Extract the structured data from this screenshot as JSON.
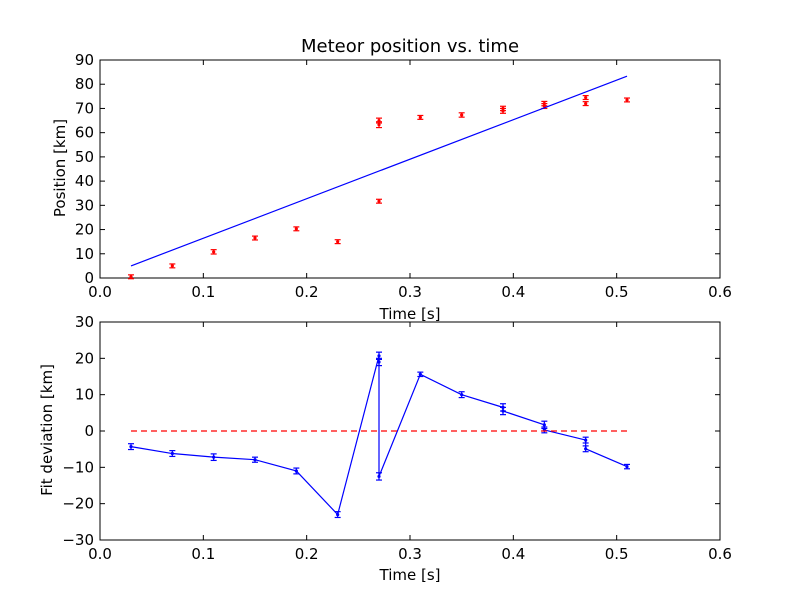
{
  "chart_data": [
    {
      "type": "scatter",
      "title": "Meteor position vs. time",
      "xlabel": "Time [s]",
      "ylabel": "Position [km]",
      "xlim": [
        0.0,
        0.6
      ],
      "ylim": [
        0,
        90
      ],
      "xticks": [
        "0.0",
        "0.1",
        "0.2",
        "0.3",
        "0.4",
        "0.5",
        "0.6"
      ],
      "yticks": [
        "0",
        "10",
        "20",
        "30",
        "40",
        "50",
        "60",
        "70",
        "80",
        "90"
      ],
      "grid": false,
      "series": [
        {
          "kind": "errorbar-points",
          "color": "#ff0000",
          "x": [
            0.03,
            0.07,
            0.11,
            0.15,
            0.19,
            0.23,
            0.27,
            0.27,
            0.27,
            0.31,
            0.35,
            0.39,
            0.39,
            0.43,
            0.43,
            0.47,
            0.47,
            0.51
          ],
          "y": [
            0.5,
            5.0,
            10.8,
            16.5,
            20.3,
            15.0,
            31.7,
            63.3,
            65.0,
            66.3,
            67.3,
            69.0,
            70.0,
            71.0,
            72.0,
            72.0,
            74.5,
            73.5
          ],
          "err": [
            0.8,
            0.8,
            0.9,
            0.8,
            0.8,
            0.8,
            0.8,
            1.2,
            1.0,
            0.8,
            0.9,
            1.0,
            0.9,
            1.0,
            0.9,
            0.8,
            0.8,
            0.8
          ]
        },
        {
          "kind": "line",
          "color": "#0000ff",
          "x": [
            0.03,
            0.51
          ],
          "y": [
            5.0,
            83.3
          ]
        }
      ]
    },
    {
      "type": "line",
      "title": "",
      "xlabel": "Time [s]",
      "ylabel": "Fit deviation [km]",
      "xlim": [
        0.0,
        0.6
      ],
      "ylim": [
        -30,
        30
      ],
      "xticks": [
        "0.0",
        "0.1",
        "0.2",
        "0.3",
        "0.4",
        "0.5",
        "0.6"
      ],
      "yticks": [
        "−30",
        "−20",
        "−10",
        "0",
        "10",
        "20",
        "30"
      ],
      "grid": false,
      "series": [
        {
          "kind": "errorbar-line",
          "color": "#0000ff",
          "x": [
            0.03,
            0.07,
            0.11,
            0.15,
            0.19,
            0.23,
            0.27,
            0.27,
            0.27,
            0.31,
            0.35,
            0.39,
            0.39,
            0.43,
            0.43,
            0.47,
            0.47,
            0.51
          ],
          "y": [
            -4.3,
            -6.2,
            -7.2,
            -7.9,
            -11.0,
            -23.0,
            20.7,
            19.0,
            -12.5,
            15.6,
            10.0,
            6.5,
            5.5,
            1.7,
            0.3,
            -2.5,
            -4.9,
            -9.8
          ],
          "err": [
            0.8,
            0.8,
            0.9,
            0.7,
            0.8,
            0.8,
            1.0,
            1.0,
            1.0,
            0.6,
            0.8,
            1.0,
            1.0,
            1.0,
            0.8,
            0.8,
            0.8,
            0.6
          ]
        },
        {
          "kind": "dashed-line",
          "color": "#ff0000",
          "x": [
            0.03,
            0.51
          ],
          "y": [
            0,
            0
          ]
        }
      ]
    }
  ]
}
